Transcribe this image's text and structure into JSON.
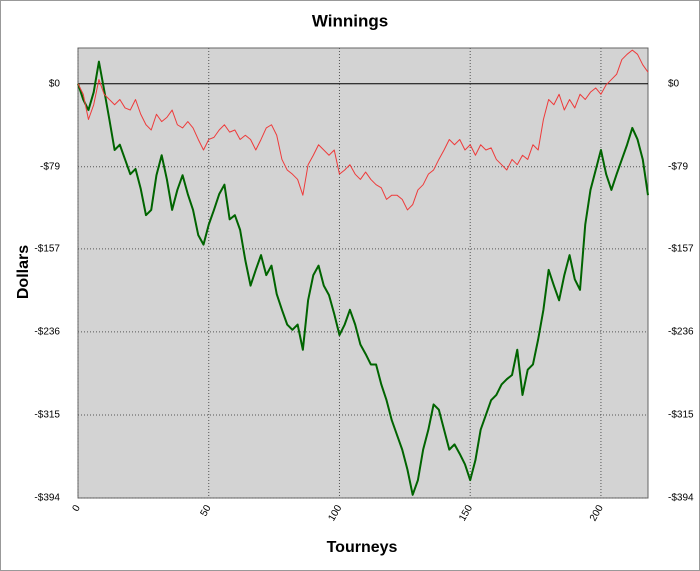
{
  "chart_data": {
    "type": "line",
    "title": "Winnings",
    "x_label": "Tourneys",
    "y_label": "Dollars",
    "x": [
      0,
      2,
      4,
      6,
      8,
      10,
      12,
      14,
      16,
      18,
      20,
      22,
      24,
      26,
      28,
      30,
      32,
      34,
      36,
      38,
      40,
      42,
      44,
      46,
      48,
      50,
      52,
      54,
      56,
      58,
      60,
      62,
      64,
      66,
      68,
      70,
      72,
      74,
      76,
      78,
      80,
      82,
      84,
      86,
      88,
      90,
      92,
      94,
      96,
      98,
      100,
      102,
      104,
      106,
      108,
      110,
      112,
      114,
      116,
      118,
      120,
      122,
      124,
      126,
      128,
      130,
      132,
      134,
      136,
      138,
      140,
      142,
      144,
      146,
      148,
      150,
      152,
      154,
      156,
      158,
      160,
      162,
      164,
      166,
      168,
      170,
      172,
      174,
      176,
      178,
      180,
      182,
      184,
      186,
      188,
      190,
      192,
      194,
      196,
      198,
      200,
      202,
      204,
      206,
      208,
      210,
      212,
      214,
      216,
      218
    ],
    "series": [
      {
        "color": "#006400",
        "width": 2,
        "values": [
          0,
          -15,
          -25,
          -8,
          21,
          -6,
          -34,
          -63,
          -58,
          -72,
          -86,
          -81,
          -100,
          -125,
          -120,
          -87,
          -68,
          -91,
          -120,
          -101,
          -87,
          -105,
          -120,
          -144,
          -153,
          -134,
          -120,
          -105,
          -96,
          -129,
          -125,
          -139,
          -168,
          -192,
          -177,
          -163,
          -182,
          -173,
          -200,
          -215,
          -229,
          -234,
          -229,
          -253,
          -206,
          -182,
          -173,
          -192,
          -201,
          -219,
          -239,
          -229,
          -215,
          -229,
          -248,
          -257,
          -267,
          -267,
          -286,
          -301,
          -320,
          -334,
          -348,
          -367,
          -391,
          -377,
          -348,
          -329,
          -305,
          -310,
          -329,
          -348,
          -343,
          -352,
          -362,
          -377,
          -358,
          -329,
          -315,
          -301,
          -296,
          -286,
          -281,
          -277,
          -253,
          -296,
          -272,
          -267,
          -243,
          -215,
          -177,
          -192,
          -206,
          -182,
          -163,
          -186,
          -196,
          -134,
          -101,
          -82,
          -63,
          -86,
          -101,
          -86,
          -72,
          -58,
          -42,
          -53,
          -72,
          -106
        ]
      },
      {
        "color": "#ee3b3b",
        "width": 1,
        "values": [
          0,
          -10,
          -34,
          -20,
          4,
          -10,
          -15,
          -20,
          -15,
          -23,
          -25,
          -15,
          -29,
          -39,
          -44,
          -29,
          -36,
          -32,
          -25,
          -39,
          -42,
          -36,
          -42,
          -53,
          -63,
          -53,
          -51,
          -44,
          -39,
          -46,
          -44,
          -53,
          -49,
          -53,
          -63,
          -53,
          -42,
          -39,
          -49,
          -72,
          -82,
          -86,
          -91,
          -106,
          -77,
          -68,
          -58,
          -63,
          -68,
          -63,
          -86,
          -82,
          -77,
          -86,
          -91,
          -84,
          -91,
          -96,
          -99,
          -110,
          -106,
          -106,
          -110,
          -120,
          -115,
          -101,
          -96,
          -86,
          -82,
          -72,
          -63,
          -53,
          -58,
          -53,
          -63,
          -58,
          -68,
          -58,
          -63,
          -61,
          -72,
          -77,
          -82,
          -72,
          -77,
          -68,
          -72,
          -58,
          -63,
          -34,
          -15,
          -20,
          -10,
          -25,
          -15,
          -23,
          -10,
          -15,
          -8,
          -4,
          -10,
          -1,
          4,
          9,
          23,
          28,
          32,
          28,
          18,
          11
        ]
      }
    ],
    "xlim": [
      0,
      218
    ],
    "ylim": [
      -394,
      34
    ],
    "xticks": [
      0,
      50,
      100,
      150,
      200
    ],
    "yticks": [
      {
        "value": -394,
        "label": "-$394"
      },
      {
        "value": -315,
        "label": "-$315"
      },
      {
        "value": -236,
        "label": "-$236"
      },
      {
        "value": -157,
        "label": "-$157"
      },
      {
        "value": -79,
        "label": "-$79"
      },
      {
        "value": 0,
        "label": "$0"
      }
    ],
    "grid": true,
    "background": "#d3d3d3"
  }
}
